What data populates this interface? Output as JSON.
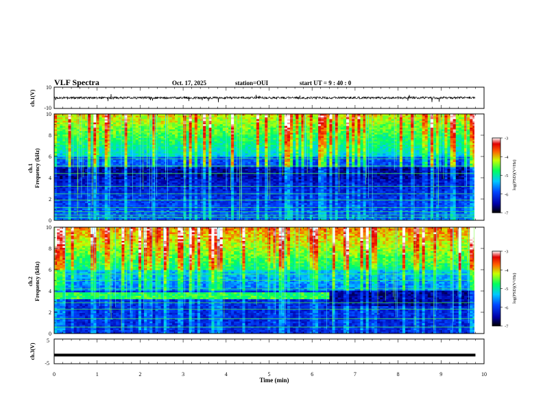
{
  "header": {
    "title": "VLF Spectra",
    "date": "Oct. 17, 2025",
    "station": "station=OUI",
    "start": "start  UT =   9 : 40 : 0"
  },
  "chart_data": [
    {
      "type": "line",
      "name": "ch1-waveform",
      "ylabel": "ch.1(V)",
      "ylim": [
        -10,
        10
      ],
      "ytick_labels": [
        "10",
        "-10"
      ],
      "baseline": 0,
      "x_range_min": [
        0,
        9.8
      ]
    },
    {
      "type": "heatmap",
      "name": "ch1-spectrogram",
      "ylabel_line1": "ch.1",
      "ylabel_line2": "Frequency  (kHz)",
      "ylim": [
        0,
        10
      ],
      "yticks": [
        "0",
        "2",
        "4",
        "6",
        "8",
        "10"
      ],
      "x_range_min": [
        0,
        9.8
      ],
      "background_band_khz": [
        4.0,
        5.0
      ],
      "emission_lines_khz": [
        0.3,
        0.5,
        0.8,
        1.2,
        1.9,
        2.5,
        3.2,
        4.4,
        5.1,
        5.8
      ],
      "colorbar": {
        "label": "log(PSD)(V²/Hz)",
        "range": [
          -7,
          -3
        ],
        "ticks": [
          "-3",
          "-4",
          "-5",
          "-6",
          "-7"
        ]
      }
    },
    {
      "type": "heatmap",
      "name": "ch2-spectrogram",
      "ylabel_line1": "ch.2",
      "ylabel_line2": "Frequency  (kHz)",
      "ylim": [
        0,
        10
      ],
      "yticks": [
        "0",
        "2",
        "4",
        "6",
        "8",
        "10"
      ],
      "x_range_min": [
        0,
        9.8
      ],
      "band_khz": [
        3.3,
        3.8
      ],
      "band_end_min": 6.4,
      "emission_lines_khz": [
        0.6,
        1.4,
        2.3,
        2.9,
        4.2,
        5.0,
        5.6
      ],
      "colorbar": {
        "label": "log(PSD)(V²/Hz)",
        "range": [
          -7,
          -3
        ],
        "ticks": [
          "-3",
          "-4",
          "-5",
          "-6",
          "-7"
        ]
      }
    },
    {
      "type": "line",
      "name": "ch3-waveform",
      "ylabel": "ch.3(V)",
      "ylim": [
        -5,
        5
      ],
      "ytick_labels": [
        "5",
        "-5"
      ],
      "baseline": -1.5,
      "x_range_min": [
        0,
        9.8
      ]
    }
  ],
  "xaxis": {
    "label": "Time  (min)",
    "ticks": [
      "0",
      "1",
      "2",
      "3",
      "4",
      "5",
      "6",
      "7",
      "8",
      "9",
      "10"
    ],
    "xlim": [
      0,
      10
    ]
  }
}
